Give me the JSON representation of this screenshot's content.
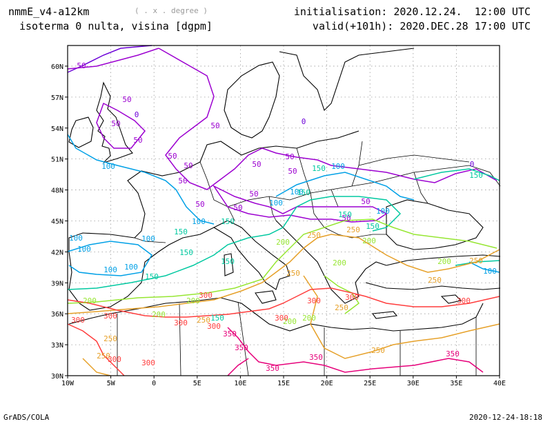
{
  "header": {
    "model": "nmmE_v4-a12km",
    "units": "( . x . degree )",
    "field": "isoterma 0 nulta, visina [dgpm]",
    "init": "initialisation: 2020.12.24.  12:00 UTC",
    "valid": "valid(+101h): 2020.DEC.28 17:00 UTC"
  },
  "footer": {
    "left": "GrADS/COLA",
    "right": "2020-12-24-18:18"
  },
  "map": {
    "lon_range": [
      -10,
      40
    ],
    "lat_range": [
      30,
      62
    ],
    "x_ticks": [
      "10W",
      "5W",
      "0",
      "5E",
      "10E",
      "15E",
      "20E",
      "25E",
      "30E",
      "35E",
      "40E"
    ],
    "y_ticks": [
      "30N",
      "33N",
      "36N",
      "39N",
      "42N",
      "45N",
      "48N",
      "51N",
      "54N",
      "57N",
      "60N"
    ],
    "grid": "dotted",
    "contour_colors": {
      "0": "#6c00d8",
      "50": "#9c00d0",
      "100": "#00a0e6",
      "150": "#00c8a0",
      "200": "#96e632",
      "250": "#e6a028",
      "300": "#ff3c3c",
      "350": "#e6007a"
    }
  }
}
